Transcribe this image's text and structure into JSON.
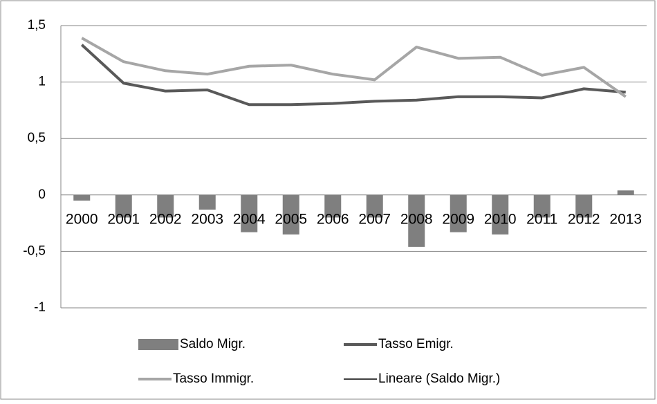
{
  "chart_data": {
    "type": "bar-line",
    "categories": [
      "2000",
      "2001",
      "2002",
      "2003",
      "2004",
      "2005",
      "2006",
      "2007",
      "2008",
      "2009",
      "2010",
      "2011",
      "2012",
      "2013"
    ],
    "series": [
      {
        "name": "Saldo Migr.",
        "kind": "bar",
        "color": "#7f7f7f",
        "values": [
          -0.05,
          -0.2,
          -0.2,
          -0.13,
          -0.33,
          -0.35,
          -0.2,
          -0.2,
          -0.46,
          -0.33,
          -0.35,
          -0.2,
          -0.2,
          0.04
        ]
      },
      {
        "name": "Tasso Emigr.",
        "kind": "line",
        "color": "#595959",
        "values": [
          1.33,
          0.99,
          0.92,
          0.93,
          0.8,
          0.8,
          0.81,
          0.83,
          0.84,
          0.87,
          0.87,
          0.86,
          0.94,
          0.91
        ]
      },
      {
        "name": "Tasso Immigr.",
        "kind": "line",
        "color": "#a6a6a6",
        "values": [
          1.39,
          1.18,
          1.1,
          1.07,
          1.14,
          1.15,
          1.07,
          1.02,
          1.31,
          1.21,
          1.22,
          1.06,
          1.13,
          0.87
        ]
      },
      {
        "name": "Lineare (Saldo Migr.)",
        "kind": "trend",
        "color": "#000000"
      }
    ],
    "ylim": [
      -1,
      1.5
    ],
    "yticks": [
      {
        "value": -1,
        "label": "-1"
      },
      {
        "value": -0.5,
        "label": "-0,5"
      },
      0,
      {
        "value": 0.5,
        "label": "0,5"
      },
      1,
      {
        "value": 1.5,
        "label": "1,5"
      }
    ],
    "grid": true
  }
}
